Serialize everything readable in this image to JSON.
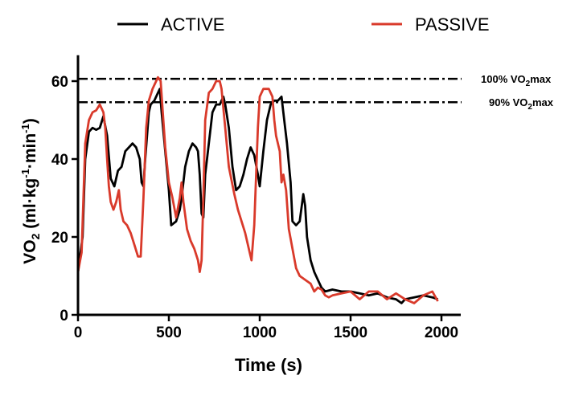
{
  "chart_data": {
    "type": "line",
    "xlabel": "Time (s)",
    "ylabel": {
      "main": "VO",
      "sub": "2",
      "units_open": " (ml·kg",
      "sup1": "-1",
      "mid": "·min",
      "sup2": "-1",
      "units_close": ")"
    },
    "xlim": [
      0,
      2000
    ],
    "ylim": [
      0,
      65
    ],
    "xticks": [
      0,
      500,
      1000,
      1500,
      2000
    ],
    "yticks": [
      0,
      20,
      40,
      60
    ],
    "grid": false,
    "legend_position": "top",
    "reference_lines": [
      {
        "value": 60.6,
        "label_pre": "100% VO",
        "label_sub": "2",
        "label_post": "max",
        "style": "dash-dot"
      },
      {
        "value": 54.6,
        "label_pre": "90% VO",
        "label_sub": "2",
        "label_post": "max",
        "style": "dash-dot"
      }
    ],
    "series": [
      {
        "name": "ACTIVE",
        "color": "#000000",
        "x": [
          0,
          25,
          40,
          60,
          80,
          100,
          120,
          140,
          160,
          180,
          200,
          220,
          240,
          260,
          280,
          300,
          320,
          340,
          350,
          360,
          370,
          390,
          400,
          420,
          440,
          450,
          460,
          480,
          500,
          513,
          540,
          560,
          570,
          590,
          610,
          630,
          650,
          660,
          670,
          680,
          690,
          700,
          720,
          740,
          760,
          780,
          800,
          810,
          830,
          850,
          870,
          890,
          910,
          930,
          950,
          970,
          990,
          1000,
          1020,
          1040,
          1060,
          1080,
          1100,
          1120,
          1140,
          1150,
          1170,
          1180,
          1200,
          1220,
          1240,
          1250,
          1260,
          1280,
          1300,
          1320,
          1340,
          1360,
          1400,
          1450,
          1500,
          1550,
          1600,
          1650,
          1700,
          1750,
          1780,
          1800,
          1850,
          1900,
          1950,
          1980
        ],
        "y": [
          11,
          20,
          40,
          47,
          48,
          47.5,
          48,
          51,
          46,
          35,
          33,
          37,
          38,
          42,
          43,
          44,
          43,
          40,
          34,
          33,
          40,
          52,
          54,
          55,
          57,
          58,
          52,
          42,
          32,
          23,
          24,
          27,
          30,
          38,
          42,
          44,
          43,
          42,
          36,
          26,
          25,
          36,
          44,
          52,
          54,
          54,
          56,
          54,
          48,
          38,
          32,
          33,
          36,
          40,
          43,
          41,
          36,
          33,
          42,
          50,
          54,
          55,
          55,
          56,
          48,
          44,
          34,
          24,
          23,
          24,
          31,
          28,
          20,
          14,
          11,
          9,
          7,
          6,
          6.5,
          6,
          6,
          5.5,
          5,
          5.5,
          4.5,
          4,
          3,
          4,
          4.5,
          5,
          4.5,
          4
        ]
      },
      {
        "name": "PASSIVE",
        "color": "#d93a2b",
        "x": [
          0,
          20,
          40,
          60,
          80,
          100,
          120,
          140,
          150,
          160,
          170,
          180,
          195,
          210,
          225,
          235,
          250,
          270,
          290,
          310,
          330,
          345,
          360,
          375,
          390,
          410,
          430,
          440,
          455,
          465,
          480,
          500,
          520,
          540,
          560,
          570,
          580,
          600,
          620,
          640,
          660,
          670,
          680,
          690,
          700,
          720,
          740,
          760,
          780,
          790,
          800,
          810,
          830,
          860,
          880,
          900,
          920,
          940,
          955,
          970,
          990,
          1000,
          1020,
          1050,
          1070,
          1080,
          1090,
          1110,
          1120,
          1130,
          1145,
          1160,
          1180,
          1200,
          1220,
          1250,
          1280,
          1300,
          1320,
          1340,
          1360,
          1380,
          1400,
          1450,
          1500,
          1550,
          1600,
          1650,
          1700,
          1750,
          1800,
          1850,
          1900,
          1950,
          1980
        ],
        "y": [
          11,
          16,
          44,
          50,
          52,
          52.5,
          54,
          52,
          48,
          40,
          33,
          29,
          27,
          29,
          32,
          27,
          24,
          23,
          21,
          18,
          15,
          15,
          30,
          48,
          55,
          58,
          60,
          61,
          60,
          53,
          43,
          34,
          30,
          25,
          30,
          34,
          29,
          22,
          19,
          17,
          14,
          11,
          14,
          30,
          50,
          57,
          58,
          60,
          60,
          58,
          53,
          48,
          38,
          31,
          27,
          24,
          21,
          17,
          14,
          23,
          48,
          56,
          58,
          58,
          56,
          50,
          46,
          42,
          34,
          36,
          32,
          22,
          17,
          12,
          10,
          9,
          8,
          6,
          7,
          6.5,
          5,
          4.5,
          5,
          5.5,
          6,
          4,
          6,
          6,
          4,
          5.5,
          4,
          3,
          5,
          6,
          3.5
        ]
      }
    ]
  }
}
